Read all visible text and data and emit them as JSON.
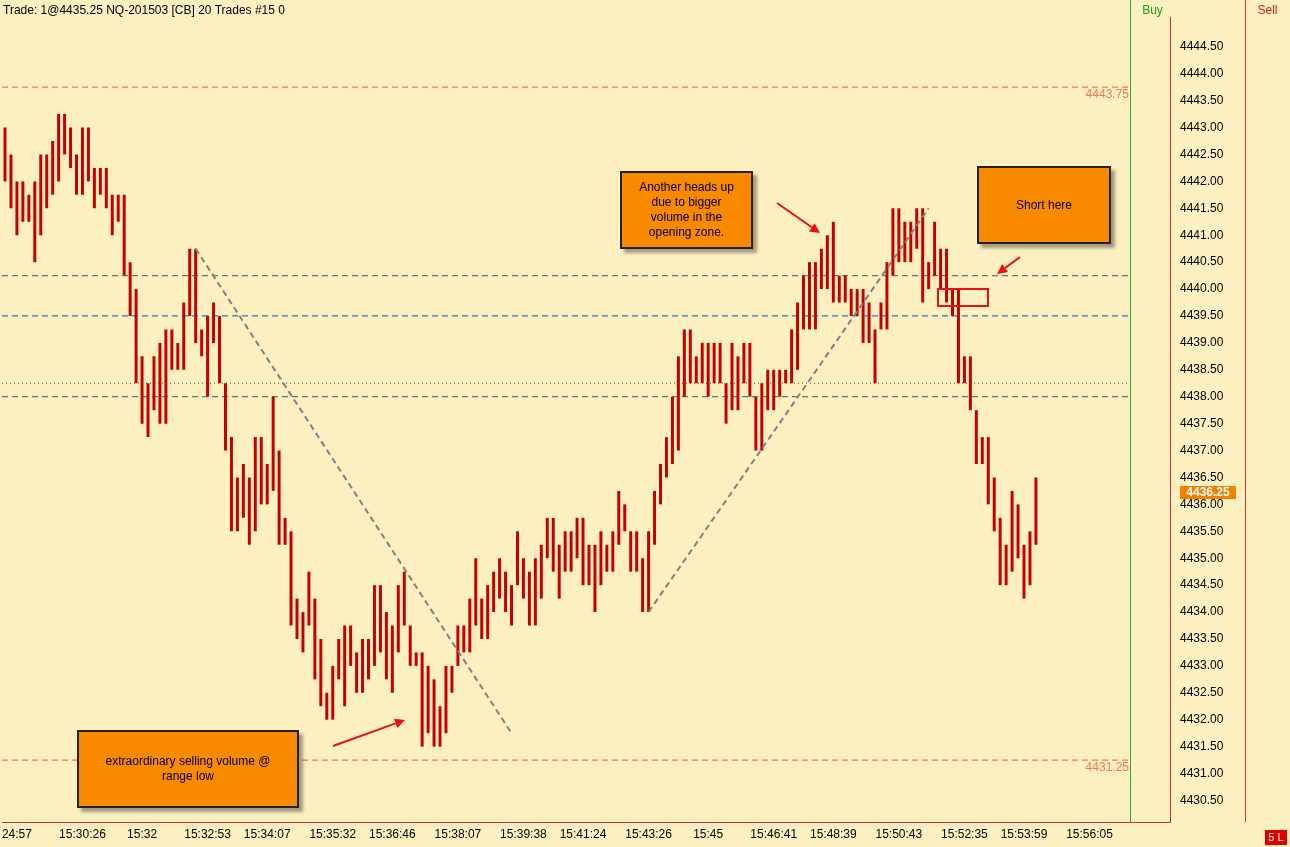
{
  "chart_data": {
    "type": "bar",
    "title": "Trade: 1@4435.25 NQ-201503 [CB] 20 Trades #15 0",
    "categories": [
      null,
      null,
      "24:57",
      null,
      null,
      null,
      null,
      null,
      null,
      null,
      null,
      null,
      null,
      "15:30:26",
      null,
      null,
      null,
      null,
      null,
      null,
      null,
      null,
      null,
      "15:32",
      null,
      null,
      null,
      null,
      null,
      null,
      null,
      null,
      null,
      null,
      "15:32:53",
      null,
      null,
      null,
      null,
      null,
      null,
      null,
      null,
      null,
      "15:34:07",
      null,
      null,
      null,
      null,
      null,
      null,
      null,
      null,
      null,
      null,
      "15:35:32",
      null,
      null,
      null,
      null,
      null,
      null,
      null,
      null,
      null,
      "15:36:46",
      null,
      null,
      null,
      null,
      null,
      null,
      null,
      null,
      null,
      null,
      "15:38:07",
      null,
      null,
      null,
      null,
      null,
      null,
      null,
      null,
      null,
      null,
      "15:39:38",
      null,
      null,
      null,
      null,
      null,
      null,
      null,
      null,
      null,
      "15:41:24",
      null,
      null,
      null,
      null,
      null,
      null,
      null,
      null,
      null,
      null,
      "15:43:26",
      null,
      null,
      null,
      null,
      null,
      null,
      null,
      null,
      null,
      "15:45",
      null,
      null,
      null,
      null,
      null,
      null,
      null,
      null,
      null,
      null,
      "15:46:41",
      null,
      null,
      null,
      null,
      null,
      null,
      null,
      null,
      null,
      "15:48:39",
      null,
      null,
      null,
      null,
      null,
      null,
      null,
      null,
      null,
      null,
      "15:50:43",
      null,
      null,
      null,
      null,
      null,
      null,
      null,
      null,
      null,
      null,
      "15:52:35",
      null,
      null,
      null,
      null,
      null,
      null,
      null,
      null,
      null,
      "15:53:59",
      null,
      null,
      null,
      null,
      null,
      null,
      null,
      null,
      null,
      null,
      "15:56:05",
      null,
      null,
      null,
      null,
      null,
      null,
      null,
      null,
      null,
      null,
      null,
      null,
      null
    ],
    "series": [
      {
        "color": "#c40000",
        "base": [
          4442.0,
          4441.5,
          4441.0,
          4441.25,
          4441.25,
          4440.5,
          4441.0,
          4441.5,
          4441.75,
          4442.0,
          4442.5,
          4442.25,
          4441.75,
          4441.75,
          4442.0,
          4441.5,
          4441.75,
          4441.5,
          4441.0,
          4441.25,
          4440.25,
          4439.5,
          4438.25,
          4437.5,
          4437.25,
          4437.75,
          4437.5,
          4437.5,
          4438.5,
          4438.5,
          4438.5,
          4439.5,
          4439.0,
          4438.75,
          4438.0,
          4439.0,
          4438.25,
          4437.0,
          4435.5,
          4435.5,
          4435.75,
          4435.25,
          4435.5,
          4436.0,
          4436.0,
          4436.25,
          4435.25,
          4435.25,
          4433.75,
          4433.5,
          4433.25,
          4433.75,
          4432.75,
          4432.25,
          4432.0,
          4432.0,
          4432.75,
          4432.25,
          4433.0,
          4432.5,
          4432.5,
          4432.75,
          4433.0,
          4433.25,
          4432.75,
          4432.5,
          4433.25,
          4433.75,
          4433.0,
          4433.0,
          4431.5,
          4431.75,
          4431.5,
          4431.5,
          4431.75,
          4432.5,
          4433.0,
          4433.25,
          4433.25,
          4433.75,
          4433.5,
          4433.5,
          4434.0,
          4434.25,
          4434.0,
          4433.75,
          4434.5,
          4434.25,
          4433.75,
          4433.75,
          4434.25,
          4435.0,
          4434.75,
          4434.25,
          4434.75,
          4434.75,
          4435.0,
          4434.5,
          4434.5,
          4434.0,
          4434.5,
          4434.75,
          4434.75,
          4435.25,
          4435.5,
          4434.75,
          4434.75,
          4434.0,
          4434.0,
          4435.25,
          4436.0,
          4436.5,
          4436.75,
          4437.0,
          4438.0,
          4438.25,
          4438.25,
          4438.25,
          4438.0,
          4438.25,
          4438.25,
          4437.5,
          4437.75,
          4437.75,
          4438.25,
          4438.0,
          4437.0,
          4437.0,
          4437.75,
          4437.75,
          4438.0,
          4438.25,
          4438.25,
          4438.5,
          4439.25,
          4439.25,
          4439.25,
          4440.0,
          4440.0,
          4439.75,
          4439.75,
          4439.75,
          4439.5,
          4439.5,
          4439.0,
          4439.0,
          4438.25,
          4439.25,
          4439.25,
          4440.25,
          4440.5,
          4440.5,
          4440.5,
          4440.75,
          4439.75,
          4440.0,
          4440.25,
          4440.0,
          4439.75,
          4439.5,
          4438.25,
          4438.25,
          4437.75,
          4436.75,
          4436.75,
          4436.0,
          4435.5,
          4434.5,
          4434.5,
          4434.75,
          4435.0,
          4434.25,
          4434.5,
          4435.25,
          null,
          null,
          null,
          null,
          null,
          null,
          null,
          null,
          null,
          null,
          null,
          null,
          null,
          null,
          null,
          null,
          null,
          null,
          null,
          null,
          null,
          null
        ],
        "values": [
          1.0,
          1.0,
          1.0,
          0.75,
          0.5,
          1.5,
          1.5,
          1.0,
          1.0,
          1.25,
          0.75,
          0.75,
          0.75,
          1.25,
          1.0,
          0.75,
          0.5,
          0.75,
          0.75,
          0.5,
          1.5,
          1.0,
          1.75,
          1.25,
          1.0,
          1.0,
          1.5,
          1.75,
          0.75,
          0.5,
          1.25,
          1.25,
          1.75,
          0.5,
          1.5,
          0.75,
          1.25,
          1.25,
          1.75,
          1.0,
          1.0,
          1.25,
          1.75,
          1.25,
          0.75,
          1.75,
          1.75,
          0.5,
          1.75,
          0.75,
          0.75,
          1.0,
          1.5,
          1.25,
          0.5,
          1.0,
          0.75,
          1.5,
          0.75,
          0.75,
          1.0,
          0.75,
          1.5,
          1.25,
          1.25,
          1.25,
          1.25,
          1.0,
          0.75,
          0.25,
          1.75,
          1.25,
          1.25,
          0.75,
          1.25,
          0.5,
          0.75,
          0.5,
          1.0,
          1.25,
          0.75,
          1.0,
          0.75,
          0.75,
          0.75,
          0.75,
          1.0,
          0.75,
          1.0,
          1.25,
          1.0,
          0.75,
          1.0,
          1.0,
          0.75,
          0.75,
          0.75,
          1.25,
          0.75,
          1.25,
          1.0,
          0.5,
          0.75,
          1.0,
          0.5,
          0.75,
          0.75,
          1.0,
          1.5,
          1.0,
          0.75,
          0.75,
          1.25,
          1.75,
          1.25,
          1.0,
          0.5,
          0.75,
          1.0,
          0.75,
          0.75,
          0.75,
          1.25,
          1.0,
          0.75,
          1.0,
          1.0,
          1.25,
          0.75,
          0.75,
          0.5,
          0.25,
          1.0,
          1.25,
          1.0,
          1.25,
          1.25,
          0.75,
          1.0,
          1.5,
          0.5,
          0.5,
          0.5,
          0.5,
          1.0,
          0.75,
          1.0,
          0.5,
          1.25,
          1.25,
          1.0,
          0.75,
          0.75,
          0.75,
          1.75,
          0.5,
          1.0,
          0.75,
          1.0,
          0.5,
          1.75,
          0.5,
          1.0,
          1.0,
          0.5,
          1.25,
          1.0,
          1.25,
          0.75,
          1.5,
          1.0,
          1.0,
          1.0,
          1.25,
          null,
          null,
          null,
          null,
          null,
          null,
          null,
          null,
          null,
          null,
          null,
          null,
          null,
          null,
          null,
          null,
          null,
          null,
          null,
          null,
          null,
          null
        ]
      },
      {
        "type": "line",
        "color": "#808080",
        "line_style": "dashed",
        "values": [
          null,
          null,
          null,
          null,
          null,
          null,
          null,
          null,
          null,
          null,
          null,
          null,
          null,
          null,
          null,
          null,
          null,
          null,
          null,
          null,
          null,
          null,
          null,
          null,
          null,
          null,
          null,
          null,
          null,
          null,
          null,
          null,
          4440.75,
          null,
          null,
          null,
          null,
          null,
          null,
          null,
          null,
          null,
          null,
          null,
          null,
          null,
          null,
          null,
          null,
          null,
          null,
          null,
          null,
          null,
          null,
          null,
          null,
          null,
          null,
          null,
          null,
          null,
          null,
          null,
          null,
          null,
          null,
          null,
          null,
          null,
          null,
          null,
          null,
          null,
          null,
          null,
          null,
          null,
          null,
          null,
          null,
          null,
          null,
          null,
          null,
          4431.75,
          null,
          null,
          null,
          null,
          null,
          null,
          null,
          null,
          null,
          null,
          null,
          null,
          null,
          null,
          null,
          null,
          null,
          null,
          null,
          null,
          null,
          null,
          null,
          null,
          null,
          null,
          null,
          null,
          null,
          null,
          null,
          null,
          null,
          null,
          null,
          null,
          null,
          null,
          null,
          null,
          null,
          null,
          null,
          null,
          null,
          null,
          null,
          null,
          null,
          null,
          null,
          null,
          null,
          null,
          null,
          null,
          null,
          null,
          null,
          null,
          null,
          null,
          null,
          null,
          null,
          null,
          null,
          null,
          null,
          null,
          null,
          null,
          null,
          null,
          null,
          null,
          null,
          null,
          null,
          null,
          null,
          null,
          null,
          null,
          null,
          null,
          null,
          null,
          null,
          null,
          null,
          null,
          null,
          null,
          null,
          null,
          null,
          null,
          null,
          null,
          null,
          null,
          null,
          null,
          null,
          null,
          null,
          null,
          null,
          null
        ]
      },
      {
        "type": "line",
        "color": "#808080",
        "line_style": "dashed",
        "values": [
          null,
          null,
          null,
          null,
          null,
          null,
          null,
          null,
          null,
          null,
          null,
          null,
          null,
          null,
          null,
          null,
          null,
          null,
          null,
          null,
          null,
          null,
          null,
          null,
          null,
          null,
          null,
          null,
          null,
          null,
          null,
          null,
          null,
          null,
          null,
          null,
          null,
          null,
          null,
          null,
          null,
          null,
          null,
          null,
          null,
          null,
          null,
          null,
          null,
          null,
          null,
          null,
          null,
          null,
          null,
          null,
          null,
          null,
          null,
          null,
          null,
          null,
          null,
          null,
          null,
          null,
          null,
          null,
          null,
          null,
          null,
          null,
          null,
          null,
          null,
          null,
          null,
          null,
          null,
          null,
          null,
          null,
          null,
          null,
          null,
          null,
          null,
          null,
          null,
          null,
          null,
          null,
          null,
          null,
          null,
          null,
          null,
          null,
          null,
          null,
          null,
          null,
          null,
          null,
          null,
          null,
          null,
          null,
          4434.0,
          null,
          null,
          null,
          null,
          null,
          null,
          null,
          null,
          null,
          null,
          null,
          null,
          null,
          null,
          null,
          null,
          null,
          null,
          null,
          null,
          null,
          null,
          null,
          null,
          null,
          null,
          null,
          null,
          null,
          null,
          null,
          null,
          null,
          null,
          null,
          null,
          null,
          null,
          null,
          null,
          null,
          null,
          null,
          null,
          null,
          null,
          4441.5,
          null,
          null,
          null,
          null,
          null,
          null,
          null,
          null,
          null,
          null,
          null,
          null,
          null,
          null,
          null,
          null,
          null,
          null,
          null,
          null,
          null,
          null,
          null,
          null,
          null,
          null,
          null,
          null,
          null,
          null,
          null,
          null,
          null,
          null,
          null,
          null,
          null,
          null,
          null,
          null
        ]
      }
    ],
    "ylim": [
      4430.1,
      4445.05
    ],
    "yticks": [
      {
        "value": 4430.5,
        "label": "4430.50"
      },
      {
        "value": 4431.0,
        "label": "4431.00"
      },
      {
        "value": 4431.5,
        "label": "4431.50"
      },
      {
        "value": 4432.0,
        "label": "4432.00"
      },
      {
        "value": 4432.5,
        "label": "4432.50"
      },
      {
        "value": 4433.0,
        "label": "4433.00"
      },
      {
        "value": 4433.5,
        "label": "4433.50"
      },
      {
        "value": 4434.0,
        "label": "4434.00"
      },
      {
        "value": 4434.5,
        "label": "4434.50"
      },
      {
        "value": 4435.0,
        "label": "4435.00"
      },
      {
        "value": 4435.5,
        "label": "4435.50"
      },
      {
        "value": 4436.0,
        "label": "4436.00"
      },
      {
        "value": 4436.5,
        "label": "4436.50"
      },
      {
        "value": 4437.0,
        "label": "4437.00"
      },
      {
        "value": 4437.5,
        "label": "4437.50"
      },
      {
        "value": 4438.0,
        "label": "4438.00"
      },
      {
        "value": 4438.5,
        "label": "4438.50"
      },
      {
        "value": 4439.0,
        "label": "4439.00"
      },
      {
        "value": 4439.5,
        "label": "4439.50"
      },
      {
        "value": 4440.0,
        "label": "4440.00"
      },
      {
        "value": 4440.5,
        "label": "4440.50"
      },
      {
        "value": 4441.0,
        "label": "4441.00"
      },
      {
        "value": 4441.5,
        "label": "4441.50"
      },
      {
        "value": 4442.0,
        "label": "4442.00"
      },
      {
        "value": 4442.5,
        "label": "4442.50"
      },
      {
        "value": 4443.0,
        "label": "4443.00"
      },
      {
        "value": 4443.5,
        "label": "4443.50"
      },
      {
        "value": 4444.0,
        "label": "4444.00"
      },
      {
        "value": 4444.5,
        "label": "4444.50"
      }
    ],
    "ref_lines": [
      {
        "axis": "y",
        "value": 4443.75,
        "label": "4443.75",
        "color": "#f07858",
        "line_style": "dashed"
      },
      {
        "axis": "y",
        "value": 4440.25,
        "label": null,
        "color": "#707070",
        "line_style": "dashed"
      },
      {
        "axis": "y",
        "value": 4439.5,
        "label": null,
        "color": "#1e78c8",
        "line_style": "dashed"
      },
      {
        "axis": "y",
        "value": 4438.25,
        "label": null,
        "color": "#808080",
        "line_style": "dotted"
      },
      {
        "axis": "y",
        "value": 4438.0,
        "label": null,
        "color": "#707070",
        "line_style": "dashed"
      },
      {
        "axis": "y",
        "value": 4431.25,
        "label": "4431.25",
        "color": "#f07858",
        "line_style": "dashed"
      }
    ],
    "annotations": [
      "Another heads up due to bigger volume in the opening zone.",
      "Short here",
      "extraordinary selling volume @ range low",
      "Buy",
      "Sell",
      "5 L",
      "4436.25"
    ],
    "legend": false,
    "grid": false
  }
}
